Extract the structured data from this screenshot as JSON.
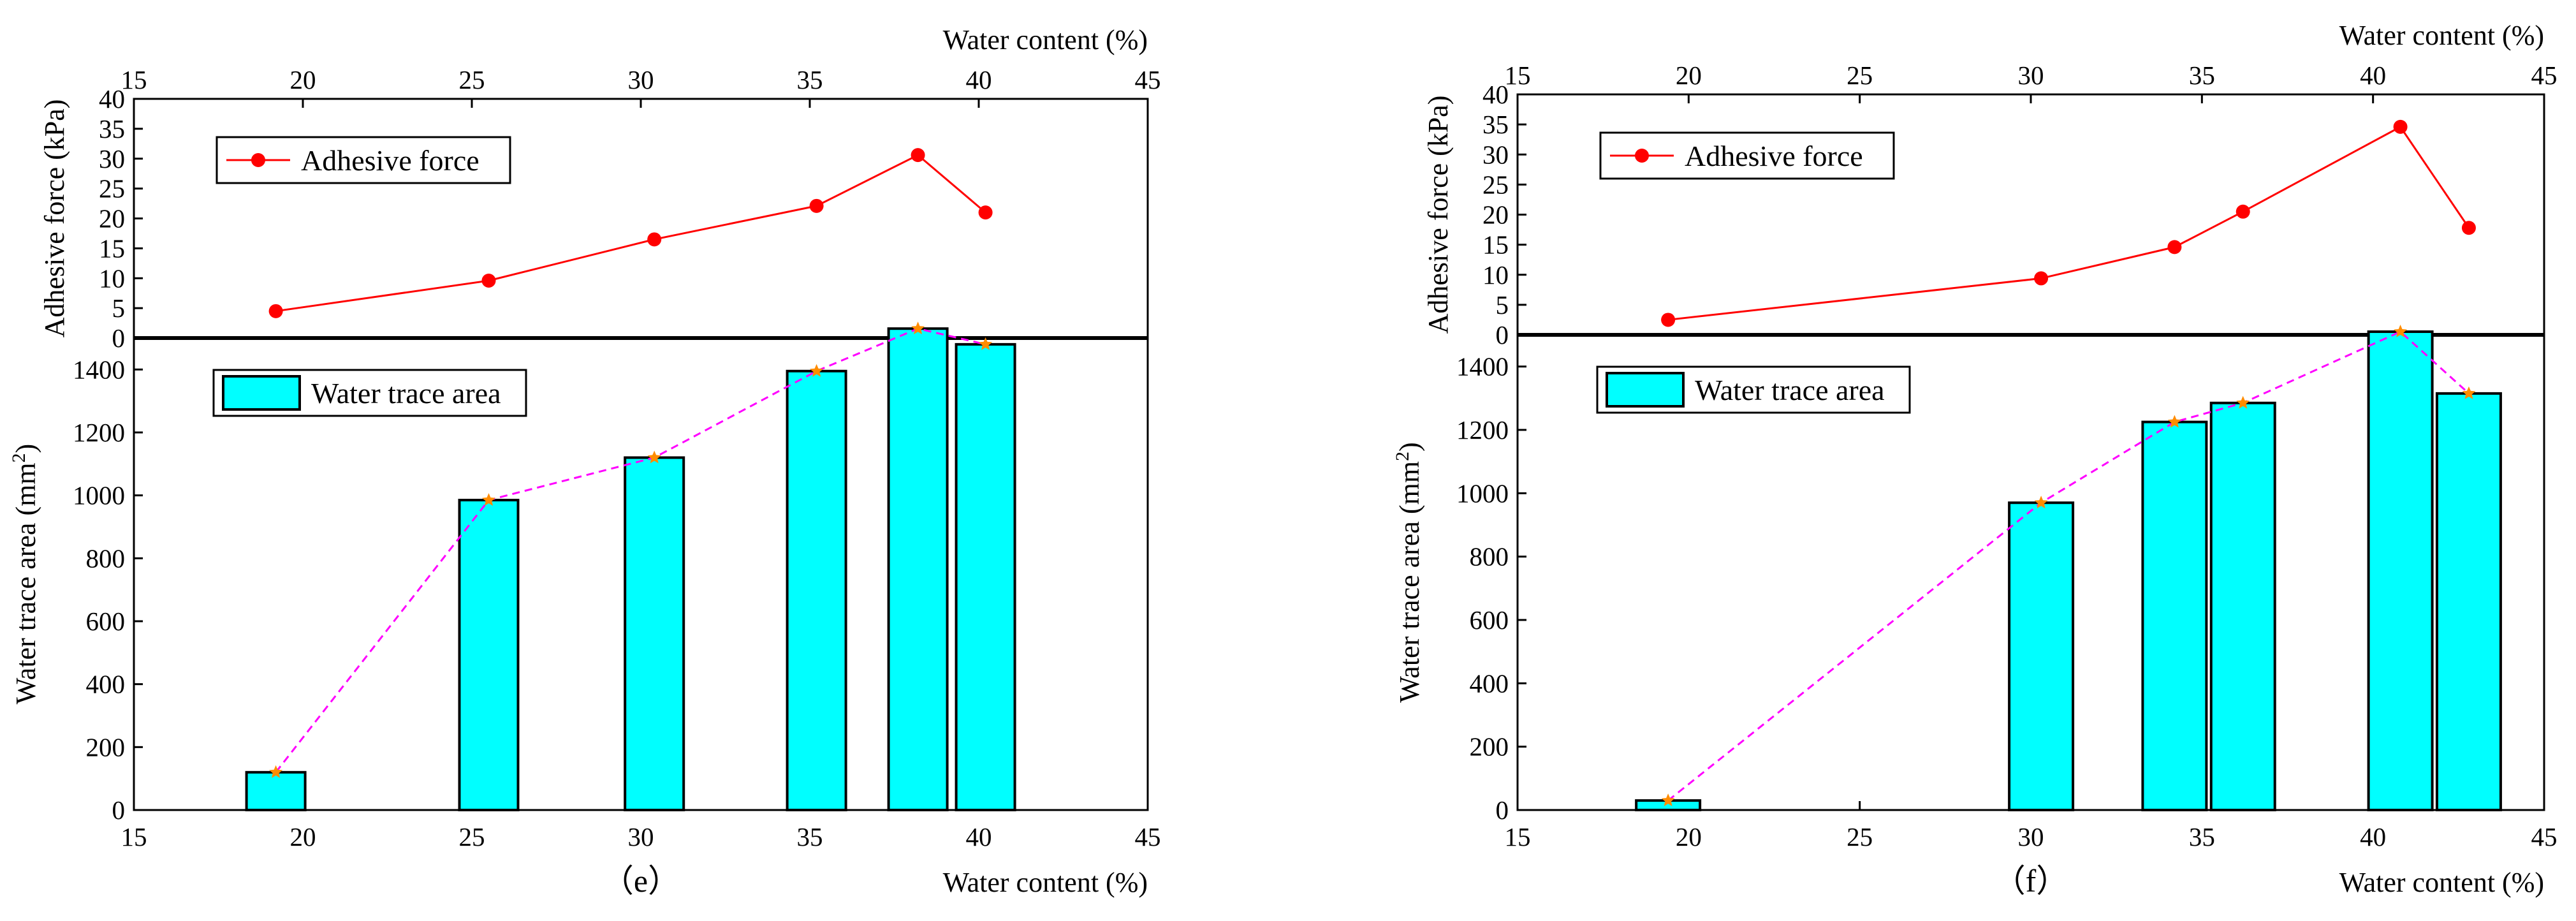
{
  "chart_data": [
    {
      "type": "bar+line",
      "panel_label": "（e）",
      "x_title_top": "Water content (%)",
      "x_title_bottom": "Water content (%)",
      "xlim": [
        15,
        45
      ],
      "x_ticks": [
        15,
        20,
        25,
        30,
        35,
        40,
        45
      ],
      "upper": {
        "ylabel": "Adhesive force (kPa)",
        "ylim": [
          0,
          40
        ],
        "y_ticks": [
          0,
          5,
          10,
          15,
          20,
          25,
          30,
          35,
          40
        ],
        "legend": "Adhesive force",
        "series": {
          "name": "Adhesive force",
          "color": "#ff0000",
          "x": [
            19.2,
            25.5,
            30.4,
            35.2,
            38.2,
            40.2
          ],
          "y": [
            4.5,
            9.6,
            16.5,
            22.1,
            30.6,
            21.0
          ]
        }
      },
      "lower": {
        "ylabel_main": "Water trace area (mm",
        "ylabel_sup": "2",
        "ylabel_end": ")",
        "ylim": [
          0,
          1500
        ],
        "y_ticks": [
          0,
          200,
          400,
          600,
          800,
          1000,
          1200,
          1400
        ],
        "legend": "Water trace area",
        "bar_color": "#00ffff",
        "trend_color": "#ff00ff",
        "marker_color": "#ff8c00",
        "bars": {
          "x": [
            19.2,
            25.5,
            30.4,
            35.2,
            38.2,
            40.2
          ],
          "values": [
            120,
            985,
            1120,
            1395,
            1530,
            1480
          ]
        }
      }
    },
    {
      "type": "bar+line",
      "panel_label": "（f）",
      "x_title_top": "Water content (%)",
      "x_title_bottom": "Water content (%)",
      "xlim": [
        15,
        45
      ],
      "x_ticks": [
        15,
        20,
        25,
        30,
        35,
        40,
        45
      ],
      "upper": {
        "ylabel": "Adhesive force (kPa)",
        "ylim": [
          0,
          40
        ],
        "y_ticks": [
          0,
          5,
          10,
          15,
          20,
          25,
          30,
          35,
          40
        ],
        "legend": "Adhesive force",
        "series": {
          "name": "Adhesive force",
          "color": "#ff0000",
          "x": [
            19.4,
            30.3,
            34.2,
            36.2,
            40.8,
            42.8
          ],
          "y": [
            2.5,
            9.4,
            14.6,
            20.5,
            34.6,
            17.8
          ]
        }
      },
      "lower": {
        "ylabel_main": "Water trace area (mm",
        "ylabel_sup": "2",
        "ylabel_end": ")",
        "ylim": [
          0,
          1500
        ],
        "y_ticks": [
          0,
          200,
          400,
          600,
          800,
          1000,
          1200,
          1400
        ],
        "legend": "Water trace area",
        "bar_color": "#00ffff",
        "trend_color": "#ff00ff",
        "marker_color": "#ff8c00",
        "bars": {
          "x": [
            19.4,
            30.3,
            34.2,
            36.2,
            40.8,
            42.8
          ],
          "values": [
            30,
            970,
            1225,
            1285,
            1510,
            1315
          ]
        }
      }
    }
  ]
}
